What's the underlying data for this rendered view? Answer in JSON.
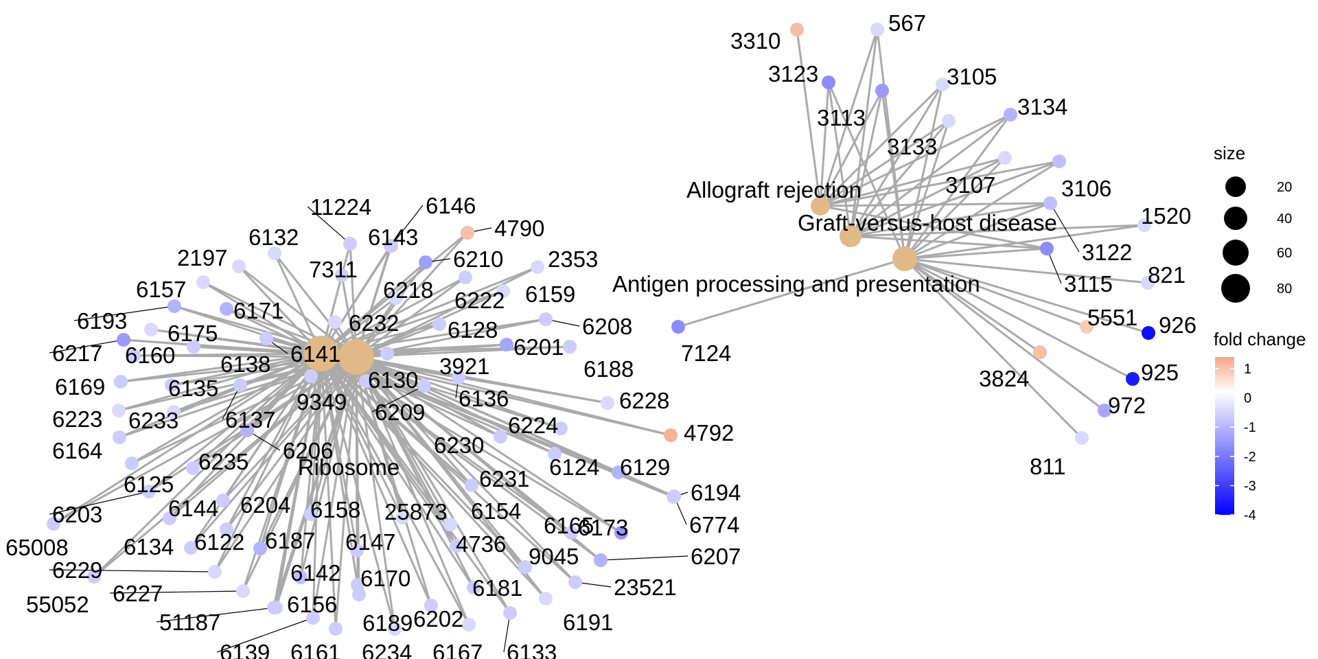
{
  "diagram": {
    "type": "cnetplot",
    "categories": [
      {
        "id": "Ribosome",
        "label": "Ribosome"
      },
      {
        "id": "Allograft rejection",
        "label": "Allograft rejection"
      },
      {
        "id": "Graft-versus-host disease",
        "label": "Graft-versus-host disease"
      },
      {
        "id": "Antigen processing and presentation",
        "label": "Antigen processing and presentation"
      }
    ],
    "genes": [
      {
        "id": "11224",
        "fc": -0.8
      },
      {
        "id": "6146",
        "fc": -0.8
      },
      {
        "id": "4790",
        "fc": 1.0
      },
      {
        "id": "6132",
        "fc": -0.6
      },
      {
        "id": "6143",
        "fc": -0.8
      },
      {
        "id": "6210",
        "fc": -1.5
      },
      {
        "id": "2197",
        "fc": -0.6
      },
      {
        "id": "7311",
        "fc": -0.8
      },
      {
        "id": "2353",
        "fc": -0.6
      },
      {
        "id": "6157",
        "fc": -0.6
      },
      {
        "id": "6218",
        "fc": -0.6
      },
      {
        "id": "6171",
        "fc": -1.2
      },
      {
        "id": "6222",
        "fc": -0.8
      },
      {
        "id": "6159",
        "fc": -0.6
      },
      {
        "id": "6193",
        "fc": -1.2
      },
      {
        "id": "6175",
        "fc": -0.6
      },
      {
        "id": "6232",
        "fc": -0.6
      },
      {
        "id": "6128",
        "fc": -0.8
      },
      {
        "id": "6208",
        "fc": -0.8
      },
      {
        "id": "6217",
        "fc": -1.6
      },
      {
        "id": "6160",
        "fc": -0.8
      },
      {
        "id": "6138",
        "fc": -0.8
      },
      {
        "id": "6141",
        "fc": -0.8
      },
      {
        "id": "6201",
        "fc": -1.4
      },
      {
        "id": "3921",
        "fc": -0.8
      },
      {
        "id": "6130",
        "fc": -0.8
      },
      {
        "id": "6188",
        "fc": -0.8
      },
      {
        "id": "6169",
        "fc": -0.8
      },
      {
        "id": "6135",
        "fc": -0.8
      },
      {
        "id": "6136",
        "fc": -0.8
      },
      {
        "id": "9349",
        "fc": -0.8
      },
      {
        "id": "6228",
        "fc": -0.6
      },
      {
        "id": "6223",
        "fc": -0.6
      },
      {
        "id": "6233",
        "fc": -0.6
      },
      {
        "id": "6137",
        "fc": -0.8
      },
      {
        "id": "6209",
        "fc": -0.8
      },
      {
        "id": "6224",
        "fc": -0.8
      },
      {
        "id": "4792",
        "fc": 1.2
      },
      {
        "id": "6164",
        "fc": -0.8
      },
      {
        "id": "6206",
        "fc": -1.2
      },
      {
        "id": "6230",
        "fc": -0.8
      },
      {
        "id": "6235",
        "fc": -0.8
      },
      {
        "id": "6124",
        "fc": -0.8
      },
      {
        "id": "6129",
        "fc": -1.2
      },
      {
        "id": "6231",
        "fc": -0.8
      },
      {
        "id": "6125",
        "fc": -0.8
      },
      {
        "id": "6194",
        "fc": -0.6
      },
      {
        "id": "6203",
        "fc": -0.8
      },
      {
        "id": "6144",
        "fc": -0.8
      },
      {
        "id": "6204",
        "fc": -0.8
      },
      {
        "id": "6158",
        "fc": -0.8
      },
      {
        "id": "25873",
        "fc": -0.6
      },
      {
        "id": "6154",
        "fc": -0.6
      },
      {
        "id": "6774",
        "fc": -0.8
      },
      {
        "id": "65008",
        "fc": -0.8
      },
      {
        "id": "6165",
        "fc": -0.8
      },
      {
        "id": "6173",
        "fc": -1.6
      },
      {
        "id": "6134",
        "fc": -0.8
      },
      {
        "id": "6122",
        "fc": -0.8
      },
      {
        "id": "6187",
        "fc": -1.2
      },
      {
        "id": "6147",
        "fc": -0.8
      },
      {
        "id": "4736",
        "fc": -0.8
      },
      {
        "id": "9045",
        "fc": -0.8
      },
      {
        "id": "6207",
        "fc": -1.2
      },
      {
        "id": "6229",
        "fc": -0.6
      },
      {
        "id": "6142",
        "fc": -1.0
      },
      {
        "id": "6170",
        "fc": -0.8
      },
      {
        "id": "6181",
        "fc": -0.8
      },
      {
        "id": "23521",
        "fc": -0.8
      },
      {
        "id": "55052",
        "fc": -0.8
      },
      {
        "id": "6227",
        "fc": -0.6
      },
      {
        "id": "6156",
        "fc": -0.8
      },
      {
        "id": "6191",
        "fc": -0.6
      },
      {
        "id": "51187",
        "fc": -0.8
      },
      {
        "id": "6189",
        "fc": -0.8
      },
      {
        "id": "6202",
        "fc": -0.8
      },
      {
        "id": "6139",
        "fc": -0.8
      },
      {
        "id": "6161",
        "fc": -0.8
      },
      {
        "id": "6234",
        "fc": -0.6
      },
      {
        "id": "6167",
        "fc": -0.6
      },
      {
        "id": "6133",
        "fc": -0.8
      },
      {
        "id": "3310",
        "fc": 1.0
      },
      {
        "id": "567",
        "fc": -0.6
      },
      {
        "id": "3123",
        "fc": -1.8
      },
      {
        "id": "3105",
        "fc": -0.6
      },
      {
        "id": "3113",
        "fc": -1.6
      },
      {
        "id": "3134",
        "fc": -1.2
      },
      {
        "id": "3133",
        "fc": -0.6
      },
      {
        "id": "3107",
        "fc": -0.6
      },
      {
        "id": "3106",
        "fc": -1.0
      },
      {
        "id": "1520",
        "fc": -0.6
      },
      {
        "id": "3122",
        "fc": -1.0
      },
      {
        "id": "3115",
        "fc": -1.8
      },
      {
        "id": "821",
        "fc": -0.6
      },
      {
        "id": "5551",
        "fc": 0.8
      },
      {
        "id": "926",
        "fc": -3.8
      },
      {
        "id": "3824",
        "fc": 1.0
      },
      {
        "id": "925",
        "fc": -3.6
      },
      {
        "id": "972",
        "fc": -1.4
      },
      {
        "id": "811",
        "fc": -0.6
      },
      {
        "id": "7124",
        "fc": -1.8
      }
    ]
  },
  "legend": {
    "size_title": "size",
    "size_entries": [
      "20",
      "40",
      "60",
      "80"
    ],
    "color_title": "fold change",
    "color_ticks": [
      "1",
      "0",
      "-1",
      "-2",
      "-3",
      "-4"
    ],
    "color_low": "#0000ff",
    "color_mid": "#ffffff",
    "color_high": "#f4a582",
    "category_color": "#e0b987",
    "edge_color": "#aaaaaa"
  }
}
